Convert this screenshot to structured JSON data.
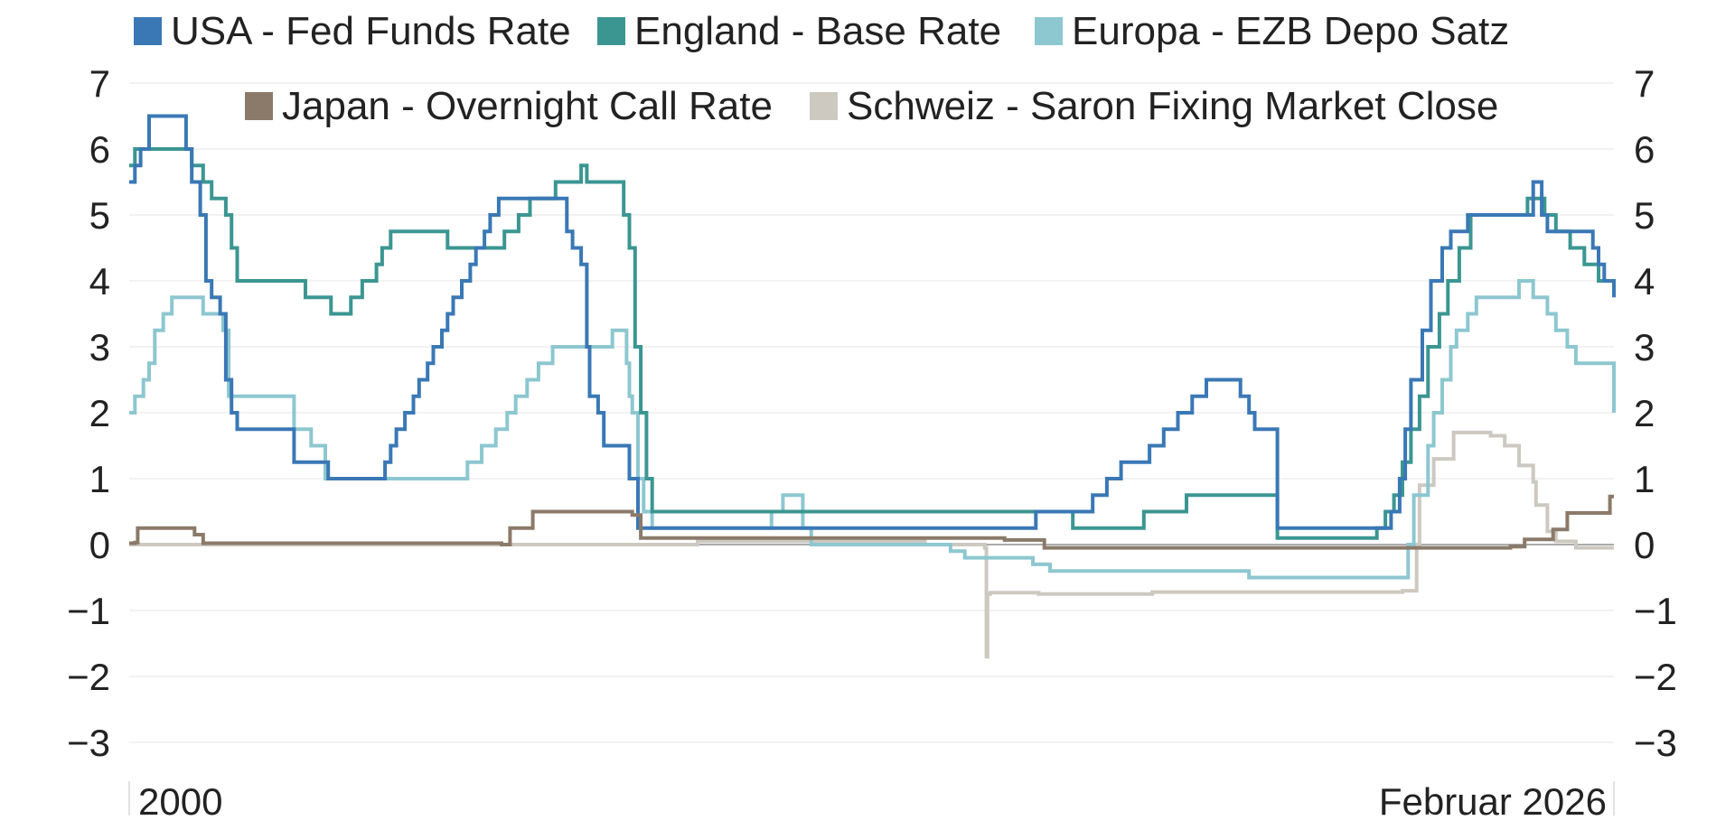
{
  "chart_data": {
    "type": "line",
    "title": "",
    "xlabel": "",
    "ylabel": "",
    "ylim": [
      -3,
      7
    ],
    "y_ticks": [
      "7",
      "6",
      "5",
      "4",
      "3",
      "2",
      "1",
      "0",
      "−1",
      "−2",
      "−3"
    ],
    "y_tick_values": [
      7,
      6,
      5,
      4,
      3,
      2,
      1,
      0,
      -1,
      -2,
      -3
    ],
    "x_range": [
      2000.0,
      2026.12
    ],
    "x_labels": {
      "start": "2000",
      "end": "Februar 2026"
    },
    "grid": true,
    "legend_position": "top",
    "series": [
      {
        "name": "USA - Fed Funds Rate",
        "color": "#3a78b5",
        "x": [
          2000.0,
          2000.1,
          2000.2,
          2000.35,
          2001.0,
          2001.1,
          2001.25,
          2001.35,
          2001.45,
          2001.6,
          2001.7,
          2001.8,
          2001.9,
          2002.9,
          2003.5,
          2004.5,
          2004.6,
          2004.7,
          2004.85,
          2005.0,
          2005.1,
          2005.25,
          2005.35,
          2005.5,
          2005.6,
          2005.7,
          2005.85,
          2006.0,
          2006.1,
          2006.25,
          2006.35,
          2006.5,
          2007.7,
          2007.8,
          2007.95,
          2008.05,
          2008.1,
          2008.25,
          2008.35,
          2008.8,
          2008.95,
          2015.95,
          2016.95,
          2017.2,
          2017.45,
          2017.95,
          2018.2,
          2018.45,
          2018.7,
          2018.95,
          2019.55,
          2019.7,
          2019.8,
          2020.2,
          2022.2,
          2022.35,
          2022.45,
          2022.55,
          2022.75,
          2022.9,
          2023.1,
          2023.25,
          2023.55,
          2024.7,
          2024.85,
          2024.95,
          2025.75,
          2025.85,
          2025.95,
          2026.12
        ],
        "values": [
          5.5,
          5.75,
          6.0,
          6.5,
          6.0,
          5.5,
          5.0,
          4.0,
          3.75,
          3.5,
          2.5,
          2.0,
          1.75,
          1.25,
          1.0,
          1.25,
          1.5,
          1.75,
          2.0,
          2.25,
          2.5,
          2.75,
          3.0,
          3.25,
          3.5,
          3.75,
          4.0,
          4.25,
          4.5,
          4.75,
          5.0,
          5.25,
          4.75,
          4.5,
          4.25,
          3.0,
          2.25,
          2.0,
          1.5,
          1.0,
          0.25,
          0.5,
          0.75,
          1.0,
          1.25,
          1.5,
          1.75,
          2.0,
          2.25,
          2.5,
          2.25,
          2.0,
          1.75,
          0.25,
          0.5,
          1.0,
          1.75,
          2.5,
          3.25,
          4.0,
          4.5,
          4.75,
          5.0,
          5.5,
          5.0,
          4.75,
          4.5,
          4.25,
          4.0,
          3.75
        ]
      },
      {
        "name": "England - Base Rate",
        "color": "#3b9692",
        "x": [
          2000.0,
          2000.1,
          2001.1,
          2001.3,
          2001.45,
          2001.7,
          2001.8,
          2001.9,
          2003.1,
          2003.55,
          2003.9,
          2004.1,
          2004.35,
          2004.45,
          2004.6,
          2005.6,
          2006.6,
          2006.85,
          2007.05,
          2007.5,
          2007.95,
          2008.05,
          2008.7,
          2008.8,
          2008.9,
          2009.0,
          2009.1,
          2009.2,
          2016.6,
          2017.85,
          2018.6,
          2020.2,
          2021.95,
          2022.1,
          2022.25,
          2022.4,
          2022.55,
          2022.7,
          2022.85,
          2023.05,
          2023.2,
          2023.4,
          2023.6,
          2024.6,
          2024.9,
          2025.1,
          2025.35,
          2025.6,
          2025.85,
          2026.12
        ],
        "values": [
          5.75,
          6.0,
          5.75,
          5.5,
          5.25,
          5.0,
          4.5,
          4.0,
          3.75,
          3.5,
          3.75,
          4.0,
          4.25,
          4.5,
          4.75,
          4.5,
          4.75,
          5.0,
          5.25,
          5.5,
          5.75,
          5.5,
          5.0,
          4.5,
          3.0,
          2.0,
          1.0,
          0.5,
          0.25,
          0.5,
          0.75,
          0.1,
          0.25,
          0.5,
          0.75,
          1.25,
          1.75,
          2.25,
          3.0,
          3.5,
          4.0,
          4.5,
          5.0,
          5.25,
          5.0,
          4.75,
          4.5,
          4.25,
          4.0,
          4.0
        ]
      },
      {
        "name": "Europa - EZB Depo Satz",
        "color": "#8dc7d0",
        "x": [
          2000.0,
          2000.1,
          2000.25,
          2000.35,
          2000.45,
          2000.6,
          2000.75,
          2001.3,
          2001.65,
          2001.75,
          2002.9,
          2003.2,
          2003.45,
          2005.95,
          2006.2,
          2006.45,
          2006.65,
          2006.8,
          2007.0,
          2007.2,
          2007.45,
          2008.5,
          2008.75,
          2008.8,
          2008.85,
          2008.95,
          2009.05,
          2009.2,
          2009.35,
          2011.3,
          2011.5,
          2011.85,
          2012.0,
          2012.5,
          2014.45,
          2014.7,
          2015.9,
          2016.2,
          2019.7,
          2022.5,
          2022.6,
          2022.85,
          2022.95,
          2023.1,
          2023.25,
          2023.35,
          2023.55,
          2023.7,
          2024.45,
          2024.7,
          2024.95,
          2025.1,
          2025.3,
          2025.45,
          2026.12
        ],
        "values": [
          2.0,
          2.25,
          2.5,
          2.75,
          3.25,
          3.5,
          3.75,
          3.5,
          3.25,
          2.25,
          1.75,
          1.5,
          1.0,
          1.25,
          1.5,
          1.75,
          2.0,
          2.25,
          2.5,
          2.75,
          3.0,
          3.25,
          2.75,
          2.25,
          2.0,
          1.0,
          0.5,
          0.25,
          0.25,
          0.5,
          0.75,
          0.25,
          0.0,
          0.0,
          -0.1,
          -0.2,
          -0.3,
          -0.4,
          -0.5,
          0.0,
          0.75,
          1.5,
          2.0,
          2.5,
          3.0,
          3.25,
          3.5,
          3.75,
          4.0,
          3.75,
          3.5,
          3.25,
          3.0,
          2.75,
          2.0
        ]
      },
      {
        "name": "Japan - Overnight Call Rate",
        "color": "#8b7a69",
        "x": [
          2000.0,
          2000.1,
          2000.15,
          2000.2,
          2000.6,
          2001.15,
          2001.3,
          2006.55,
          2006.7,
          2007.1,
          2007.25,
          2008.85,
          2009.0,
          2015.4,
          2016.1,
          2024.3,
          2024.55,
          2025.05,
          2025.3,
          2026.0,
          2026.05,
          2026.12
        ],
        "values": [
          0.02,
          0.03,
          0.25,
          0.25,
          0.25,
          0.15,
          0.02,
          0.0,
          0.25,
          0.5,
          0.5,
          0.45,
          0.1,
          0.07,
          -0.05,
          -0.03,
          0.08,
          0.23,
          0.48,
          0.48,
          0.73,
          0.73
        ]
      },
      {
        "name": "Schweiz - Saron Fixing Market Close",
        "color": "#cdc9c1",
        "x": [
          2000.0,
          2009.0,
          2010.0,
          2014.0,
          2015.05,
          2015.08,
          2015.1,
          2015.15,
          2016.0,
          2018.0,
          2022.4,
          2022.65,
          2022.7,
          2022.95,
          2023.3,
          2023.5,
          2023.95,
          2024.2,
          2024.45,
          2024.7,
          2024.75,
          2024.95,
          2025.1,
          2025.45,
          2026.12
        ],
        "values": [
          0.0,
          0.0,
          0.05,
          0.0,
          -0.05,
          -1.7,
          -0.75,
          -0.73,
          -0.75,
          -0.72,
          -0.7,
          0.0,
          0.9,
          1.3,
          1.7,
          1.7,
          1.65,
          1.5,
          1.2,
          0.95,
          0.6,
          0.2,
          0.05,
          -0.05,
          -0.05
        ]
      }
    ]
  }
}
